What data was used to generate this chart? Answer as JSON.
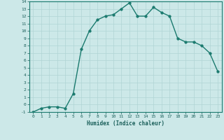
{
  "x": [
    0,
    1,
    2,
    3,
    4,
    5,
    6,
    7,
    8,
    9,
    10,
    11,
    12,
    13,
    14,
    15,
    16,
    17,
    18,
    19,
    20,
    21,
    22,
    23
  ],
  "y": [
    -1,
    -0.5,
    -0.3,
    -0.3,
    -0.5,
    1.5,
    7.5,
    10.0,
    11.5,
    12.0,
    12.2,
    13.0,
    13.8,
    12.0,
    12.0,
    13.2,
    12.5,
    12.0,
    9.0,
    8.5,
    8.5,
    8.0,
    7.0,
    4.5
  ],
  "xlabel": "Humidex (Indice chaleur)",
  "xlim": [
    -0.5,
    23.5
  ],
  "ylim": [
    -1,
    14
  ],
  "yticks": [
    -1,
    0,
    1,
    2,
    3,
    4,
    5,
    6,
    7,
    8,
    9,
    10,
    11,
    12,
    13,
    14
  ],
  "xticks": [
    0,
    1,
    2,
    3,
    4,
    5,
    6,
    7,
    8,
    9,
    10,
    11,
    12,
    13,
    14,
    15,
    16,
    17,
    18,
    19,
    20,
    21,
    22,
    23
  ],
  "line_color": "#1a7a6e",
  "marker_color": "#1a7a6e",
  "bg_color": "#cce8e8",
  "grid_color": "#b0d4d4",
  "tick_label_color": "#1a5f5a",
  "xlabel_color": "#1a5f5a",
  "line_width": 1.0,
  "marker_size": 2.5,
  "tick_fontsize": 4.5,
  "xlabel_fontsize": 5.5
}
